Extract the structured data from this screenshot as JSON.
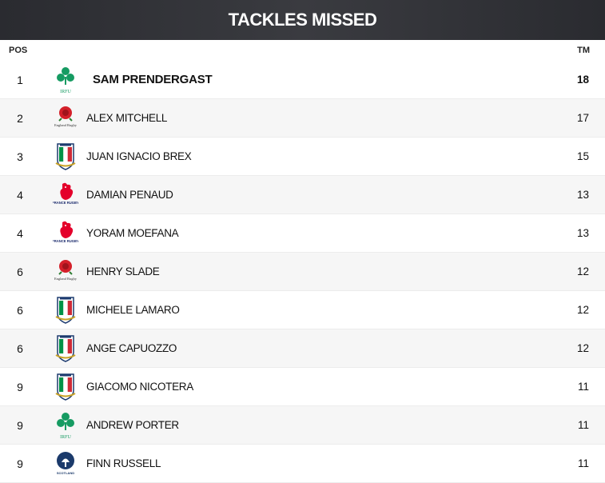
{
  "title": "TACKLES MISSED",
  "columns": {
    "pos": "POS",
    "tm": "TM"
  },
  "colors": {
    "header_bg": "#2f3035",
    "ireland": "#169b62",
    "england_rose": "#d4202a",
    "italy_green": "#009246",
    "italy_red": "#ce2b37",
    "france_red": "#e4002b",
    "france_blue": "#1a2a6c",
    "scotland_blue": "#1b3a6b"
  },
  "rows": [
    {
      "pos": "1",
      "name": "SAM PRENDERGAST",
      "tm": "18",
      "team_icon": "ireland-irfu-icon",
      "logo_text": "IRFU"
    },
    {
      "pos": "2",
      "name": "ALEX MITCHELL",
      "tm": "17",
      "team_icon": "england-rose-icon",
      "logo_text": "England Rugby"
    },
    {
      "pos": "3",
      "name": "JUAN IGNACIO BREX",
      "tm": "15",
      "team_icon": "italy-rugby-icon"
    },
    {
      "pos": "4",
      "name": "DAMIAN PENAUD",
      "tm": "13",
      "team_icon": "france-rooster-icon",
      "logo_text": "FRANCE RUGBY"
    },
    {
      "pos": "4",
      "name": "YORAM MOEFANA",
      "tm": "13",
      "team_icon": "france-rooster-icon",
      "logo_text": "FRANCE RUGBY"
    },
    {
      "pos": "6",
      "name": "HENRY SLADE",
      "tm": "12",
      "team_icon": "england-rose-icon",
      "logo_text": "England Rugby"
    },
    {
      "pos": "6",
      "name": "MICHELE LAMARO",
      "tm": "12",
      "team_icon": "italy-rugby-icon"
    },
    {
      "pos": "6",
      "name": "ANGE CAPUOZZO",
      "tm": "12",
      "team_icon": "italy-rugby-icon"
    },
    {
      "pos": "9",
      "name": "GIACOMO NICOTERA",
      "tm": "11",
      "team_icon": "italy-rugby-icon"
    },
    {
      "pos": "9",
      "name": "ANDREW PORTER",
      "tm": "11",
      "team_icon": "ireland-irfu-icon",
      "logo_text": "IRFU"
    },
    {
      "pos": "9",
      "name": "FINN RUSSELL",
      "tm": "11",
      "team_icon": "scotland-thistle-icon",
      "logo_text": "SCOTLAND"
    }
  ]
}
